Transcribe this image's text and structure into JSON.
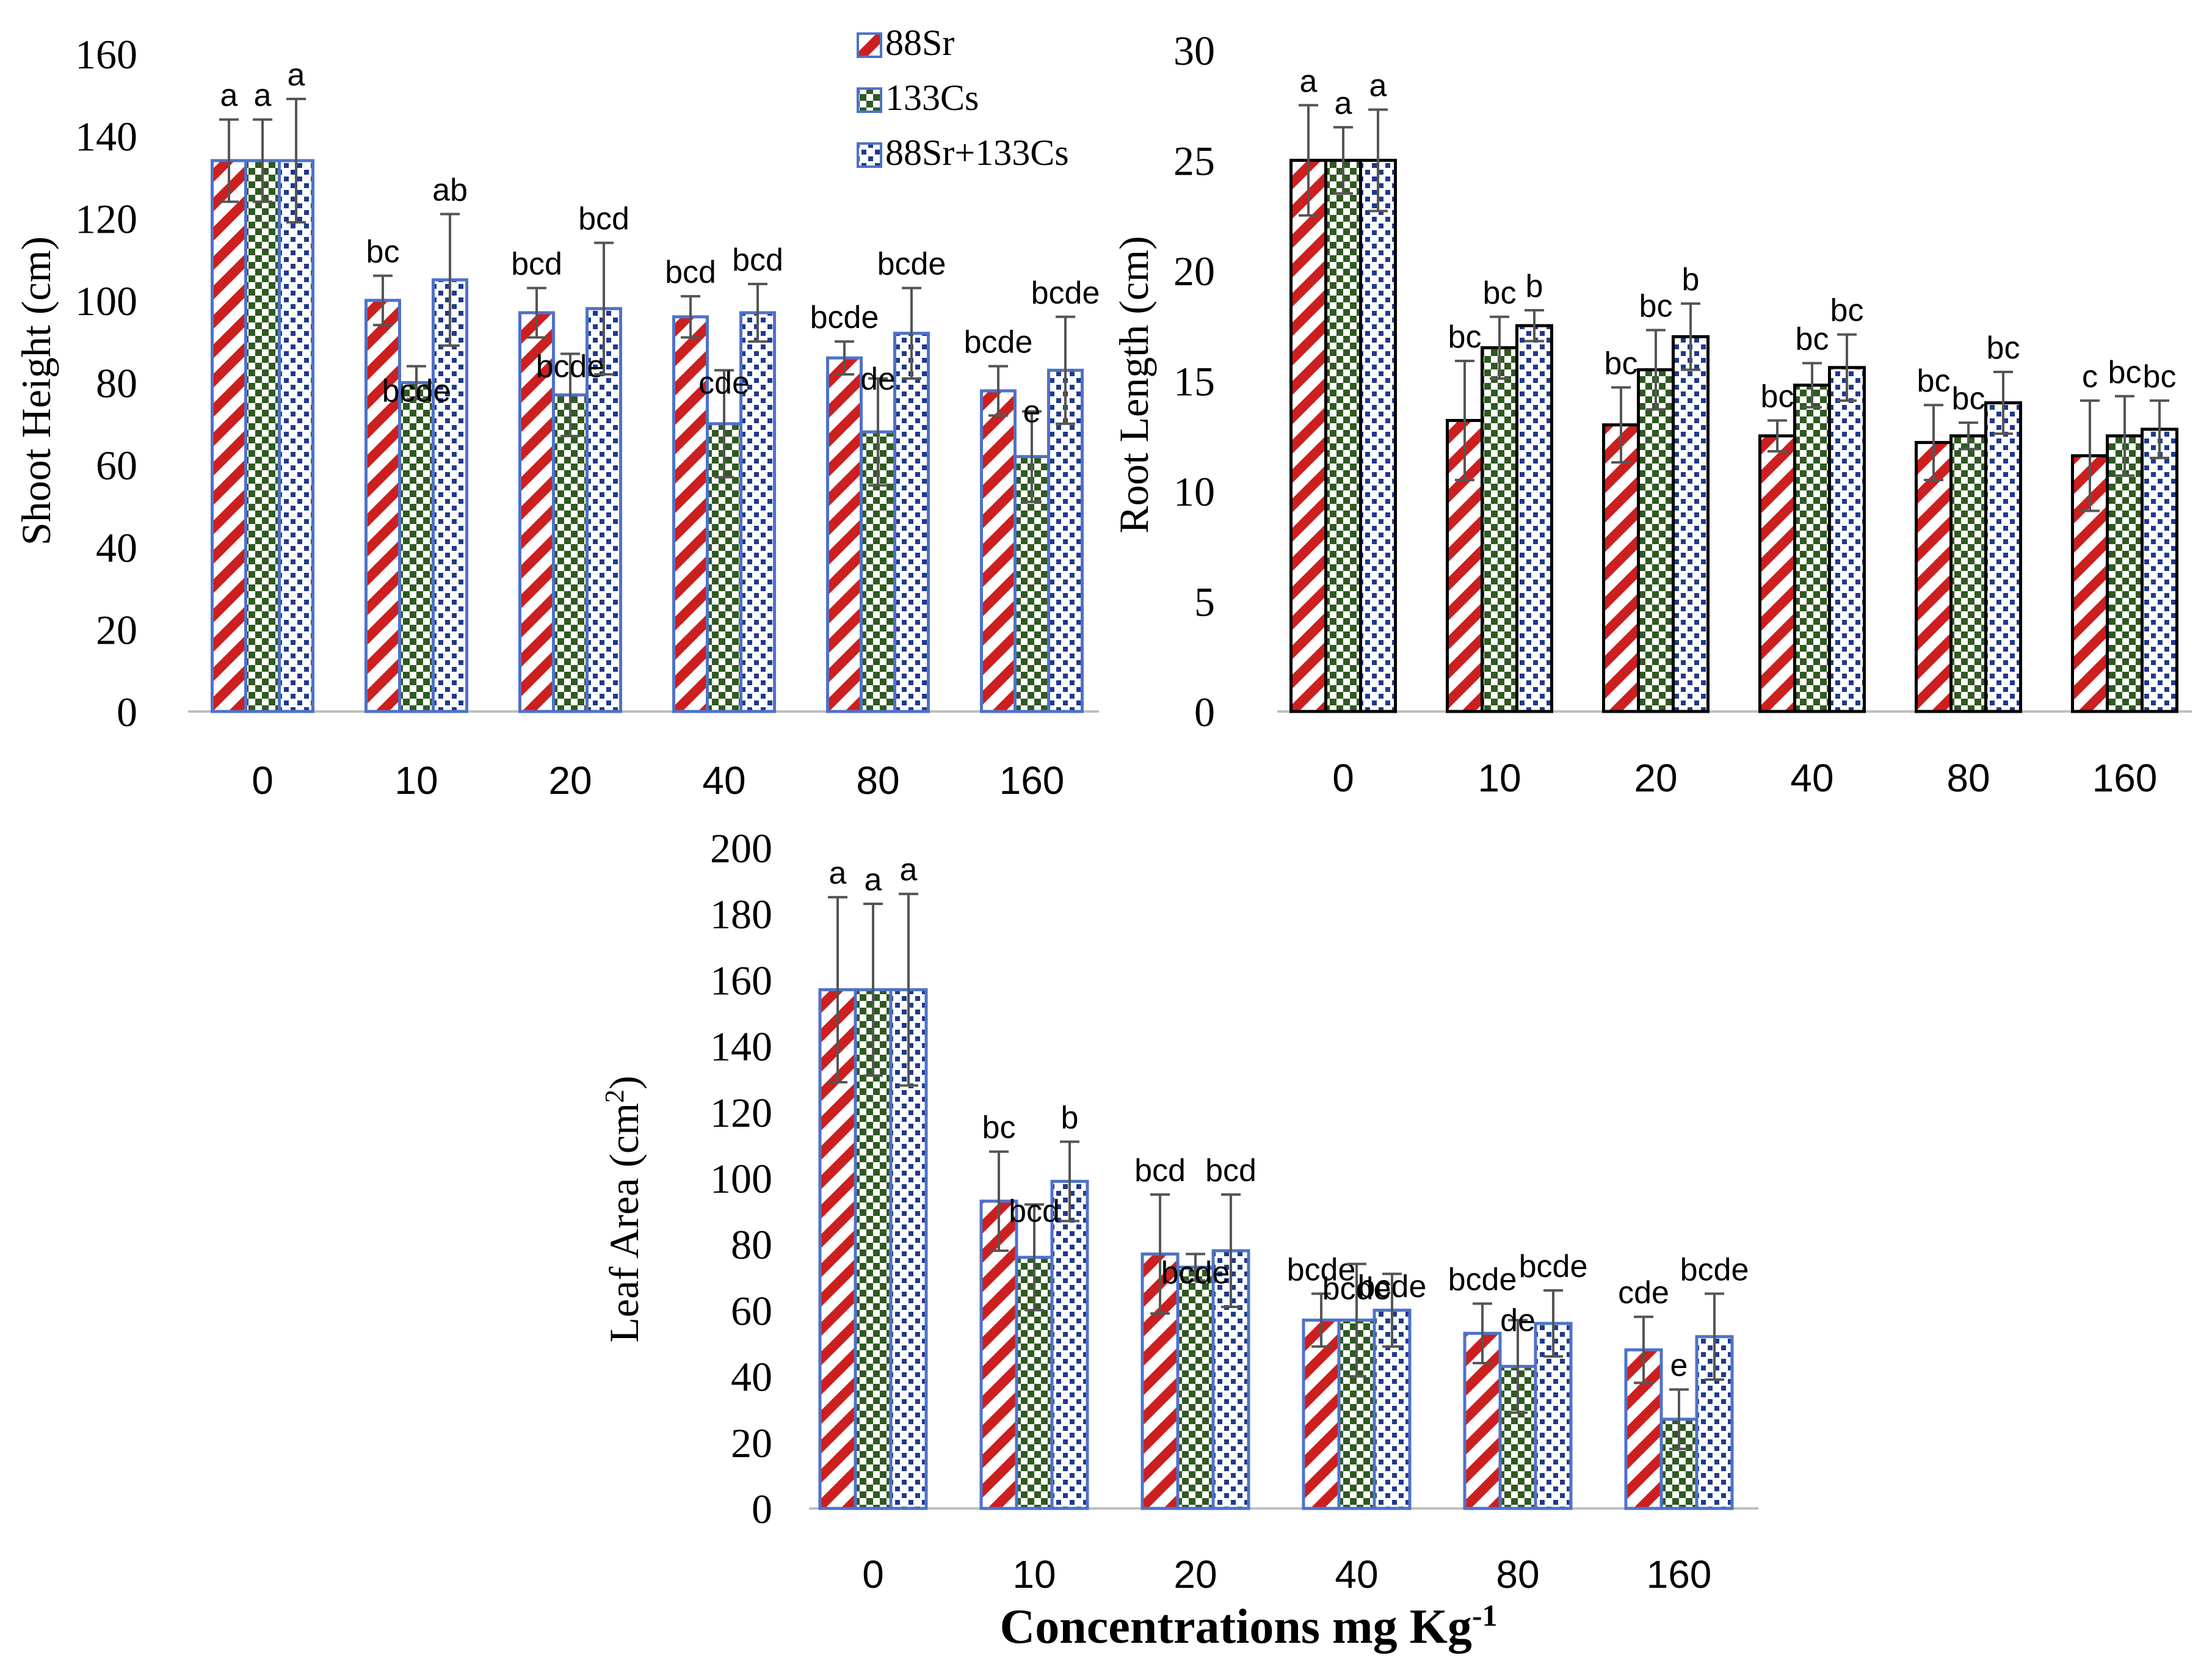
{
  "legend": [
    {
      "name": "88Sr",
      "color": "#cc1f1f"
    },
    {
      "name": "133Cs",
      "color": "#2f5a1f"
    },
    {
      "name": "88Sr+133Cs",
      "color": "#1f3a8a"
    }
  ],
  "colors": {
    "bar_outline": "#4f72c8",
    "bar_outline_dark": "#000000",
    "axis": "#bfbfbf",
    "error": "#555555"
  },
  "xlabel": "Concentrations mg Kg",
  "xlabel_sup": "-1",
  "chart_data": [
    {
      "type": "bar",
      "id": "shoot",
      "title": "",
      "ylabel": "Shoot Height (cm)",
      "ylim": [
        0,
        160
      ],
      "yticks": [
        0,
        20,
        40,
        60,
        80,
        100,
        120,
        140,
        160
      ],
      "categories": [
        "0",
        "10",
        "20",
        "40",
        "80",
        "160"
      ],
      "series": [
        {
          "name": "88Sr",
          "values": [
            134,
            100,
            97,
            96,
            86,
            78
          ],
          "errors": [
            10,
            6,
            6,
            5,
            4,
            6
          ],
          "letters": [
            "a",
            "bc",
            "bcd",
            "bcd",
            "bcde",
            "bcde"
          ]
        },
        {
          "name": "133Cs",
          "values": [
            134,
            80,
            77,
            70,
            68,
            62
          ],
          "errors": [
            10,
            4,
            10,
            13,
            13,
            11
          ],
          "letters": [
            "a",
            "bcde",
            "bcde",
            "cde",
            "de",
            "e"
          ]
        },
        {
          "name": "88Sr+133Cs",
          "values": [
            134,
            105,
            98,
            97,
            92,
            83
          ],
          "errors": [
            15,
            16,
            16,
            7,
            11,
            13
          ],
          "letters": [
            "a",
            "ab",
            "bcd",
            "bcd",
            "bcde",
            "bcde"
          ]
        }
      ]
    },
    {
      "type": "bar",
      "id": "root",
      "title": "",
      "ylabel": "Root Length (cm)",
      "ylim": [
        0,
        30
      ],
      "yticks": [
        0,
        5,
        10,
        15,
        20,
        25,
        30
      ],
      "categories": [
        "0",
        "10",
        "20",
        "40",
        "80",
        "160"
      ],
      "series": [
        {
          "name": "88Sr",
          "values": [
            25,
            13.2,
            13.0,
            12.5,
            12.2,
            11.6
          ],
          "errors": [
            2.5,
            2.7,
            1.7,
            0.7,
            1.7,
            2.5
          ],
          "letters": [
            "a",
            "bc",
            "bc",
            "bc",
            "bc",
            "c"
          ]
        },
        {
          "name": "133Cs",
          "values": [
            25,
            16.5,
            15.5,
            14.8,
            12.5,
            12.5
          ],
          "errors": [
            1.5,
            1.4,
            1.8,
            1.0,
            0.6,
            1.8
          ],
          "letters": [
            "a",
            "bc",
            "bc",
            "bc",
            "bc",
            "bc"
          ]
        },
        {
          "name": "88Sr+133Cs",
          "values": [
            25,
            17.5,
            17.0,
            15.6,
            14.0,
            12.8
          ],
          "errors": [
            2.3,
            0.7,
            1.5,
            1.5,
            1.4,
            1.3
          ],
          "letters": [
            "a",
            "b",
            "b",
            "bc",
            "bc",
            "bc"
          ]
        }
      ]
    },
    {
      "type": "bar",
      "id": "leaf",
      "title": "",
      "ylabel": "Leaf Area (cm",
      "ylabel_sup": "2",
      "ylabel_end": ")",
      "ylim": [
        0,
        200
      ],
      "yticks": [
        0,
        20,
        40,
        60,
        80,
        100,
        120,
        140,
        160,
        180,
        200
      ],
      "categories": [
        "0",
        "10",
        "20",
        "40",
        "80",
        "160"
      ],
      "series": [
        {
          "name": "88Sr",
          "values": [
            157,
            93,
            77,
            57,
            53,
            48
          ],
          "errors": [
            28,
            15,
            18,
            8,
            9,
            10
          ],
          "letters": [
            "a",
            "bc",
            "bcd",
            "bcde",
            "bcde",
            "cde"
          ]
        },
        {
          "name": "133Cs",
          "values": [
            157,
            76,
            73,
            57,
            43,
            27
          ],
          "errors": [
            26,
            16,
            4,
            17,
            14,
            9
          ],
          "letters": [
            "a",
            "bcd",
            "bcde",
            "bcde",
            "de",
            "e"
          ]
        },
        {
          "name": "88Sr+133Cs",
          "values": [
            157,
            99,
            78,
            60,
            56,
            52
          ],
          "errors": [
            29,
            12,
            17,
            11,
            10,
            13
          ],
          "letters": [
            "a",
            "b",
            "bcd",
            "bcde",
            "bcde",
            "bcde"
          ]
        }
      ]
    }
  ]
}
